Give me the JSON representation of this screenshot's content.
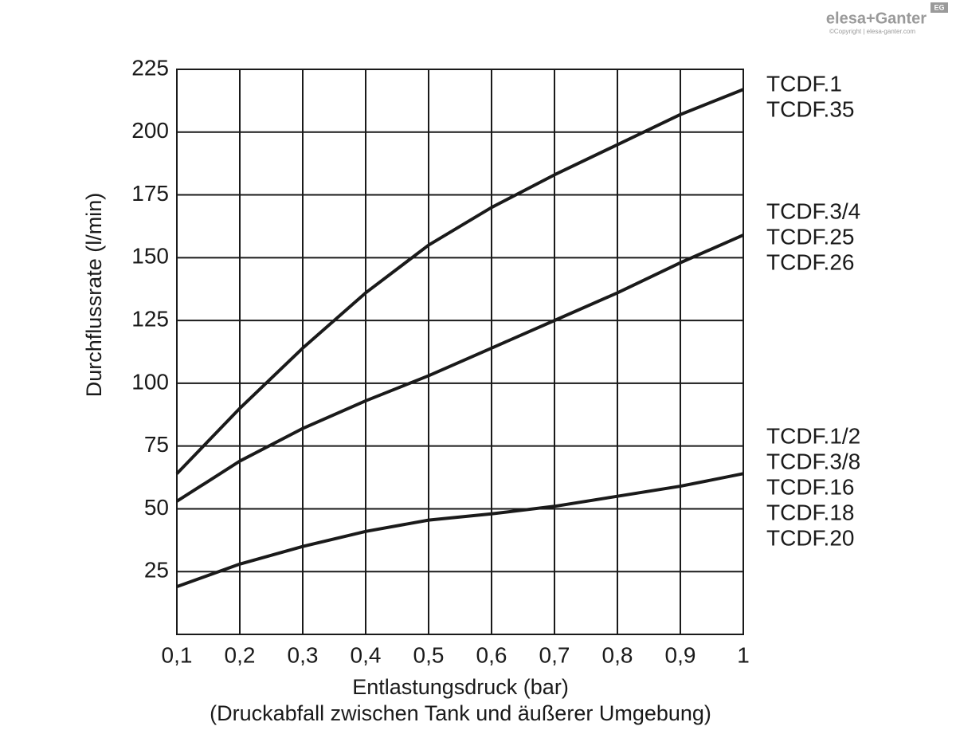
{
  "chart_data": {
    "type": "line",
    "x": [
      0.1,
      0.2,
      0.3,
      0.4,
      0.5,
      0.6,
      0.7,
      0.8,
      0.9,
      1
    ],
    "series": [
      {
        "labels": [
          "TCDF.1",
          "TCDF.35"
        ],
        "color": "#1a1a1a",
        "values": [
          64,
          90,
          114,
          136,
          155,
          170,
          183,
          195,
          207,
          217
        ]
      },
      {
        "labels": [
          "TCDF.3/4",
          "TCDF.25",
          "TCDF.26"
        ],
        "color": "#1a1a1a",
        "values": [
          53,
          69,
          82,
          93,
          103,
          114,
          125,
          136,
          148,
          159
        ]
      },
      {
        "labels": [
          "TCDF.1/2",
          "TCDF.3/8",
          "TCDF.16",
          "TCDF.18",
          "TCDF.20"
        ],
        "color": "#1a1a1a",
        "values": [
          19,
          28,
          35,
          41,
          45.5,
          48,
          51,
          55,
          59,
          64
        ]
      }
    ],
    "xlim": [
      0.1,
      1
    ],
    "xticks": [
      {
        "value": 0.1,
        "label": "0,1"
      },
      {
        "value": 0.2,
        "label": "0,2"
      },
      {
        "value": 0.3,
        "label": "0,3"
      },
      {
        "value": 0.4,
        "label": "0,4"
      },
      {
        "value": 0.5,
        "label": "0,5"
      },
      {
        "value": 0.6,
        "label": "0,6"
      },
      {
        "value": 0.7,
        "label": "0,7"
      },
      {
        "value": 0.8,
        "label": "0,8"
      },
      {
        "value": 0.9,
        "label": "0,9"
      },
      1
    ],
    "ylim": [
      0,
      225
    ],
    "yticks": [
      25,
      50,
      75,
      100,
      125,
      150,
      175,
      200,
      225
    ],
    "grid": true,
    "ylabel": "Durchflussrate (l/min)",
    "xlabel": "Entlastungsdruck (bar)",
    "xlabel2": "(Druckabfall zwischen Tank und äußerer Umgebung)"
  },
  "logo": {
    "brand": "elesa+Ganter",
    "badge": "EG",
    "copyright": "©Copyright | elesa-ganter.com"
  }
}
